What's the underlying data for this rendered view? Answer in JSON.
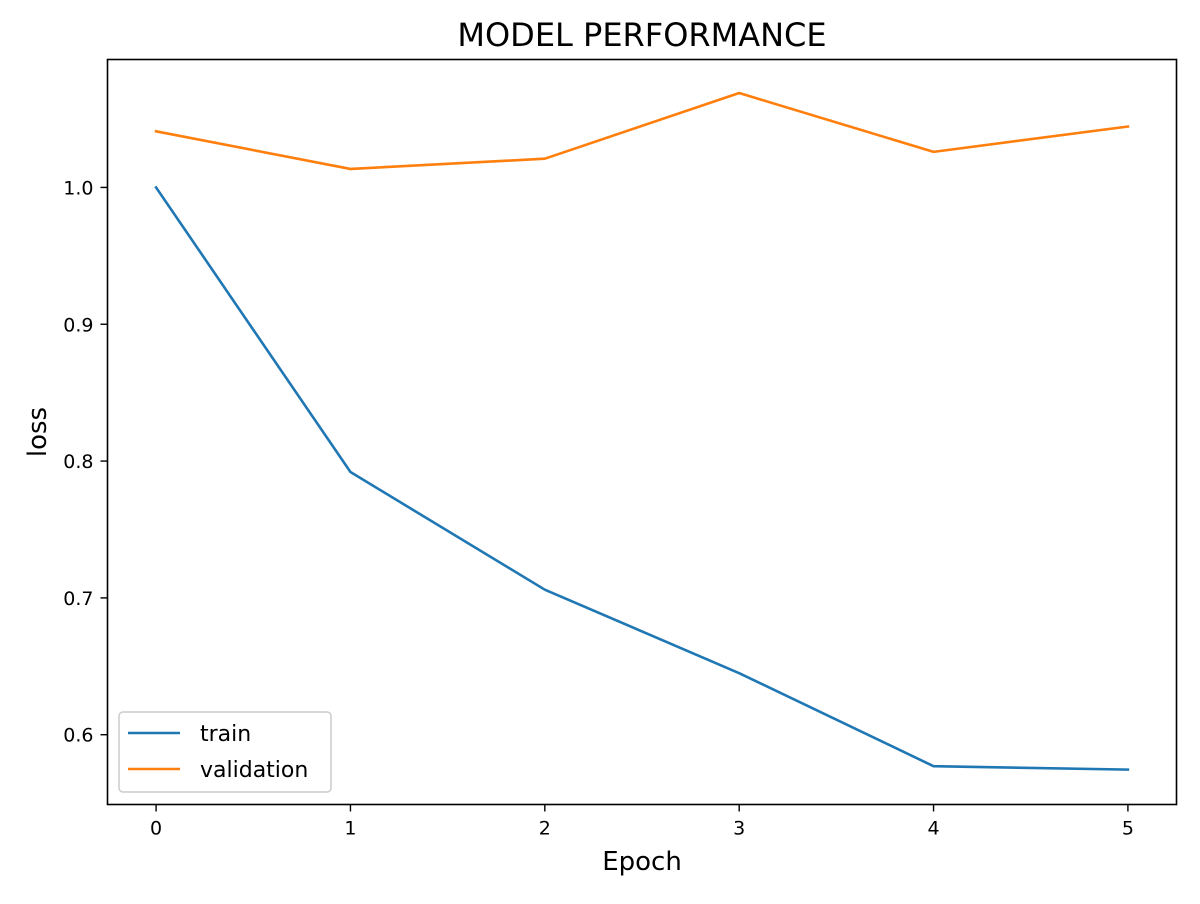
{
  "chart_data": {
    "type": "line",
    "title": "MODEL PERFORMANCE",
    "xlabel": "Epoch",
    "ylabel": "loss",
    "x": [
      0,
      1,
      2,
      3,
      4,
      5
    ],
    "xlim": [
      -0.25,
      5.25
    ],
    "ylim": [
      0.549,
      1.0935
    ],
    "x_ticks": [
      0,
      1,
      2,
      3,
      4,
      5
    ],
    "x_tick_labels": [
      "0",
      "1",
      "2",
      "3",
      "4",
      "5"
    ],
    "y_ticks": [
      0.6,
      0.7,
      0.8,
      0.9,
      1.0
    ],
    "y_tick_labels": [
      "0.6",
      "0.7",
      "0.8",
      "0.9",
      "1.0"
    ],
    "grid": false,
    "legend_position": "lower-left",
    "series": [
      {
        "name": "train",
        "color": "#1f77b4",
        "values": [
          1.0,
          0.792,
          0.706,
          0.645,
          0.577,
          0.5745
        ]
      },
      {
        "name": "validation",
        "color": "#ff7f0e",
        "values": [
          1.041,
          1.0135,
          1.021,
          1.069,
          1.026,
          1.0445
        ]
      }
    ]
  }
}
